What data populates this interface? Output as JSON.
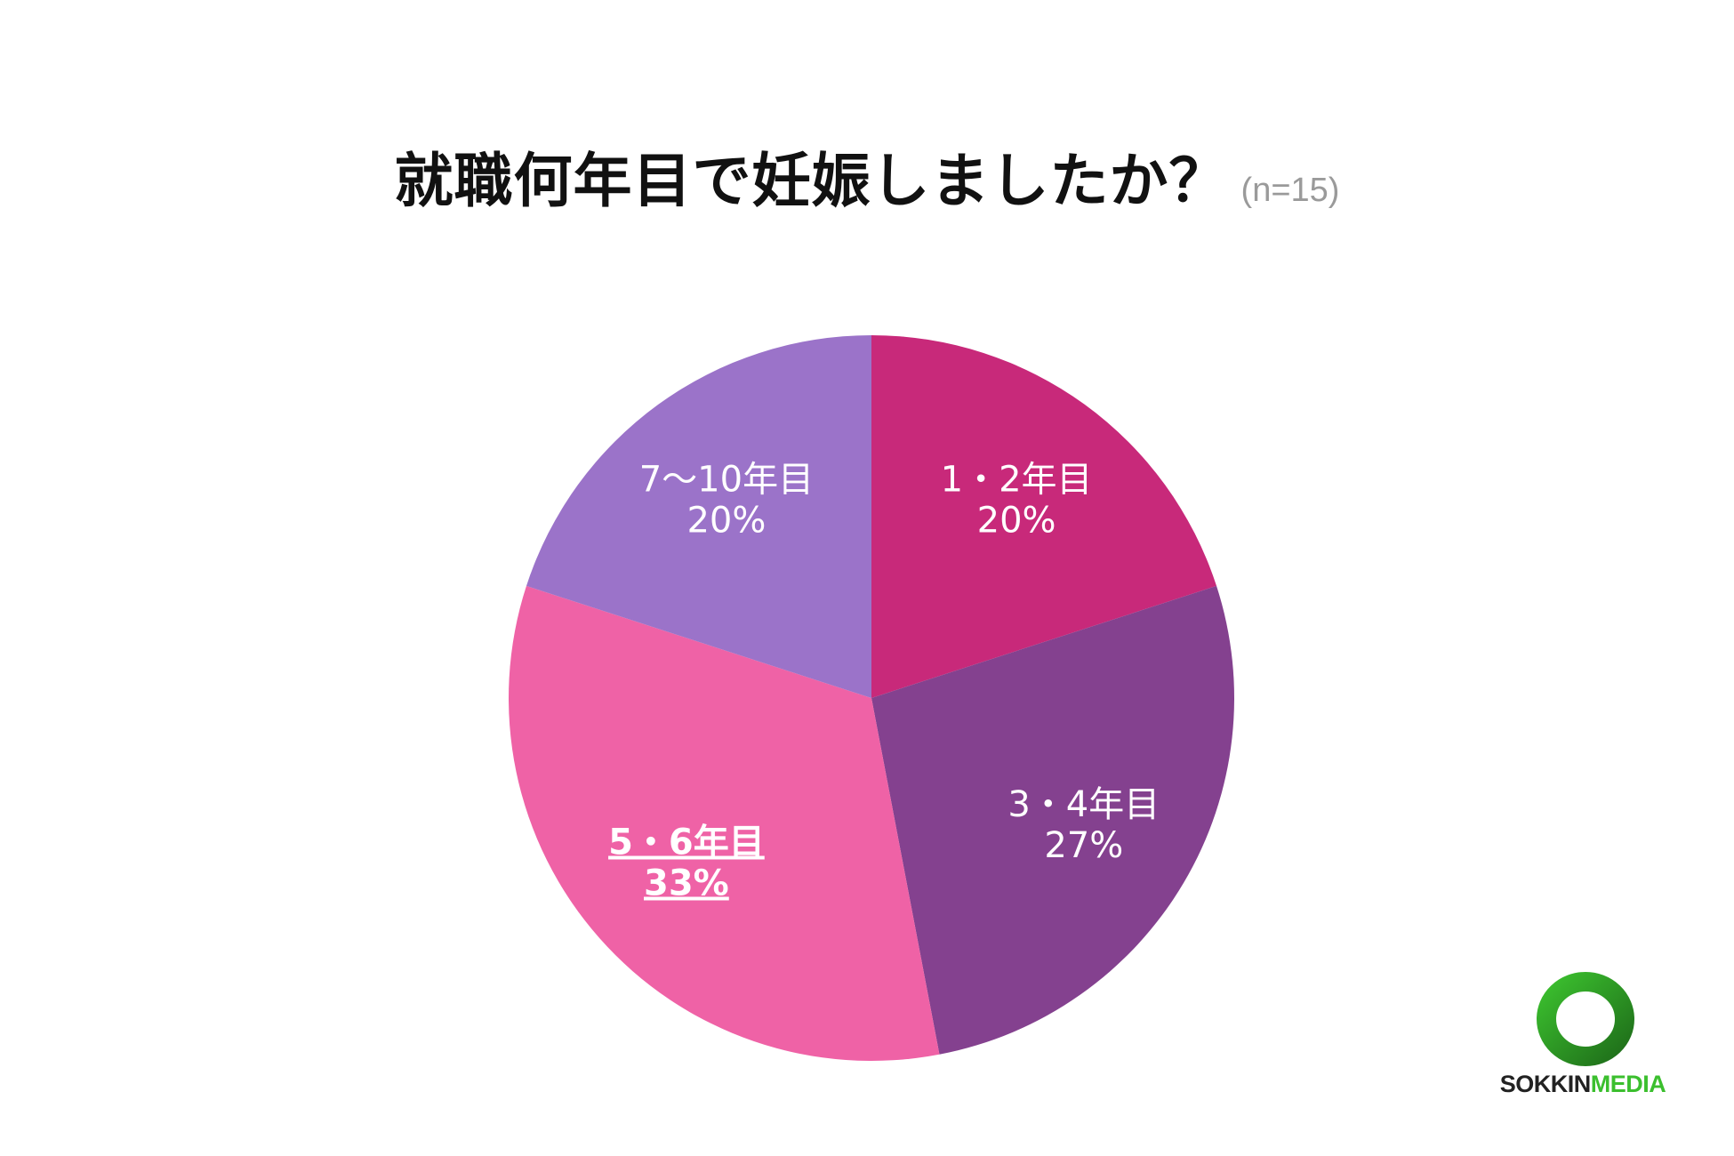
{
  "chart_data": {
    "type": "pie",
    "title": "就職何年目で妊娠しましたか？",
    "subtitle": "(n=15)",
    "start_angle_deg": 0,
    "direction": "clockwise",
    "slices": [
      {
        "label": "1・2年目",
        "value": 20,
        "value_label": "20%",
        "color": "#c8297a",
        "label_color": "#ffffff",
        "emphasis": false
      },
      {
        "label": "3・4年目",
        "value": 27,
        "value_label": "27%",
        "color": "#84418f",
        "label_color": "#ffffff",
        "emphasis": false
      },
      {
        "label": "5・6年目",
        "value": 33,
        "value_label": "33%",
        "color": "#ef62a6",
        "label_color": "#ffffff",
        "emphasis": true
      },
      {
        "label": "7〜10年目",
        "value": 20,
        "value_label": "20%",
        "color": "#9b73c9",
        "label_color": "#ffffff",
        "emphasis": false
      }
    ]
  },
  "logo": {
    "text_a": "SOKKIN",
    "text_b": "MEDIA",
    "ring_color": "#3bbf2e",
    "ring_shadow_color": "#1f6e1a"
  }
}
